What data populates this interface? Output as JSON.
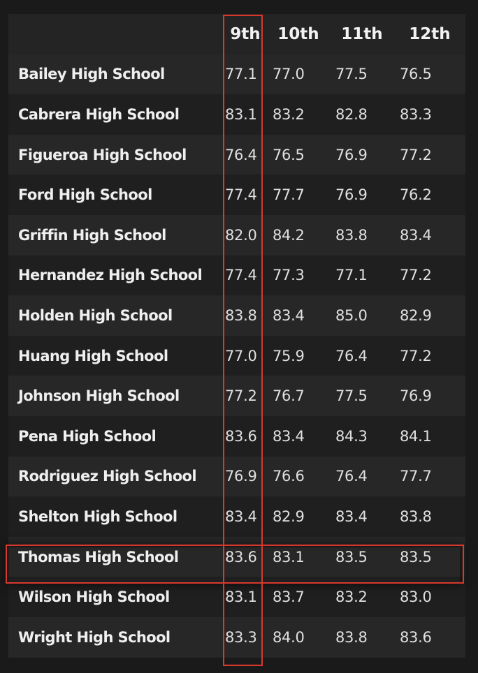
{
  "columns": [
    "9th",
    "10th",
    "11th",
    "12th"
  ],
  "rows": [
    {
      "school": "Bailey High School",
      "values": [
        "77.1",
        "77.0",
        "77.5",
        "76.5"
      ]
    },
    {
      "school": "Cabrera High School",
      "values": [
        "83.1",
        "83.2",
        "82.8",
        "83.3"
      ]
    },
    {
      "school": "Figueroa High School",
      "values": [
        "76.4",
        "76.5",
        "76.9",
        "77.2"
      ]
    },
    {
      "school": "Ford High School",
      "values": [
        "77.4",
        "77.7",
        "76.9",
        "76.2"
      ]
    },
    {
      "school": "Griffin High School",
      "values": [
        "82.0",
        "84.2",
        "83.8",
        "83.4"
      ]
    },
    {
      "school": "Hernandez High School",
      "values": [
        "77.4",
        "77.3",
        "77.1",
        "77.2"
      ]
    },
    {
      "school": "Holden High School",
      "values": [
        "83.8",
        "83.4",
        "85.0",
        "82.9"
      ]
    },
    {
      "school": "Huang High School",
      "values": [
        "77.0",
        "75.9",
        "76.4",
        "77.2"
      ]
    },
    {
      "school": "Johnson High School",
      "values": [
        "77.2",
        "76.7",
        "77.5",
        "76.9"
      ]
    },
    {
      "school": "Pena High School",
      "values": [
        "83.6",
        "83.4",
        "84.3",
        "84.1"
      ]
    },
    {
      "school": "Rodriguez High School",
      "values": [
        "76.9",
        "76.6",
        "76.4",
        "77.7"
      ]
    },
    {
      "school": "Shelton High School",
      "values": [
        "83.4",
        "82.9",
        "83.4",
        "83.8"
      ]
    },
    {
      "school": "Thomas High School",
      "values": [
        "83.6",
        "83.1",
        "83.5",
        "83.5"
      ]
    },
    {
      "school": "Wilson High School",
      "values": [
        "83.1",
        "83.7",
        "83.2",
        "83.0"
      ]
    },
    {
      "school": "Wright High School",
      "values": [
        "83.3",
        "84.0",
        "83.8",
        "83.6"
      ]
    }
  ],
  "highlight": {
    "column": "9th",
    "row": "Thomas High School",
    "color": "#d9382c"
  }
}
